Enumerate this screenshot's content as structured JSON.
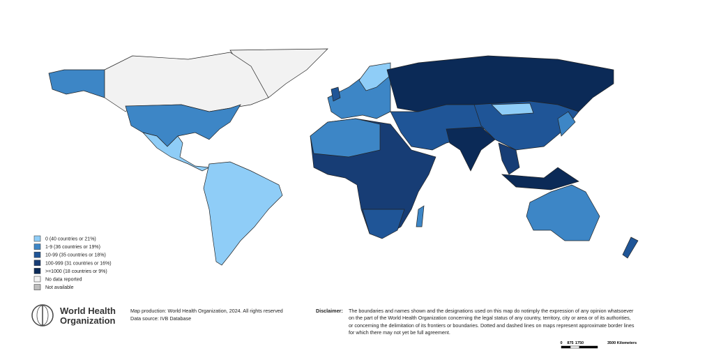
{
  "legend": {
    "items": [
      {
        "label": "0 (40 countries or 21%)",
        "color": "#8fcdf7"
      },
      {
        "label": "1-9 (36 countries or 19%)",
        "color": "#3d86c6"
      },
      {
        "label": "10-99 (35 countries or 18%)",
        "color": "#1f5597"
      },
      {
        "label": "100-999 (31 countries or 16%)",
        "color": "#173d75"
      },
      {
        "label": ">=1000 (18 countries or 9%)",
        "color": "#0b2a57"
      },
      {
        "label": "No data reported",
        "color": "#f2f2f2"
      },
      {
        "label": "Not available",
        "color": "#bdbdbd"
      }
    ]
  },
  "logo": {
    "line1": "World Health",
    "line2": "Organization"
  },
  "credits": {
    "production": "Map production: World Health Organization, 2024. All rights reserved",
    "source": "Data source: IVB Database"
  },
  "disclaimer": {
    "label": "Disclaimer:",
    "lines": [
      "The boundaries and names shown and the designations used on this map do notimply the expression of any opinion whatsoever",
      "on the part of the World Health Organization concerning the legal status of any country, territory, city or area or of its authorities,",
      "or concerning the delimitation of its frontiers or boundaries. Dotted and dashed lines on maps represent approximate border lines",
      "for which there may not yet be full agreement."
    ]
  },
  "scale": {
    "labels": [
      "0",
      "875",
      "1750",
      "3500 Kilometers"
    ]
  }
}
